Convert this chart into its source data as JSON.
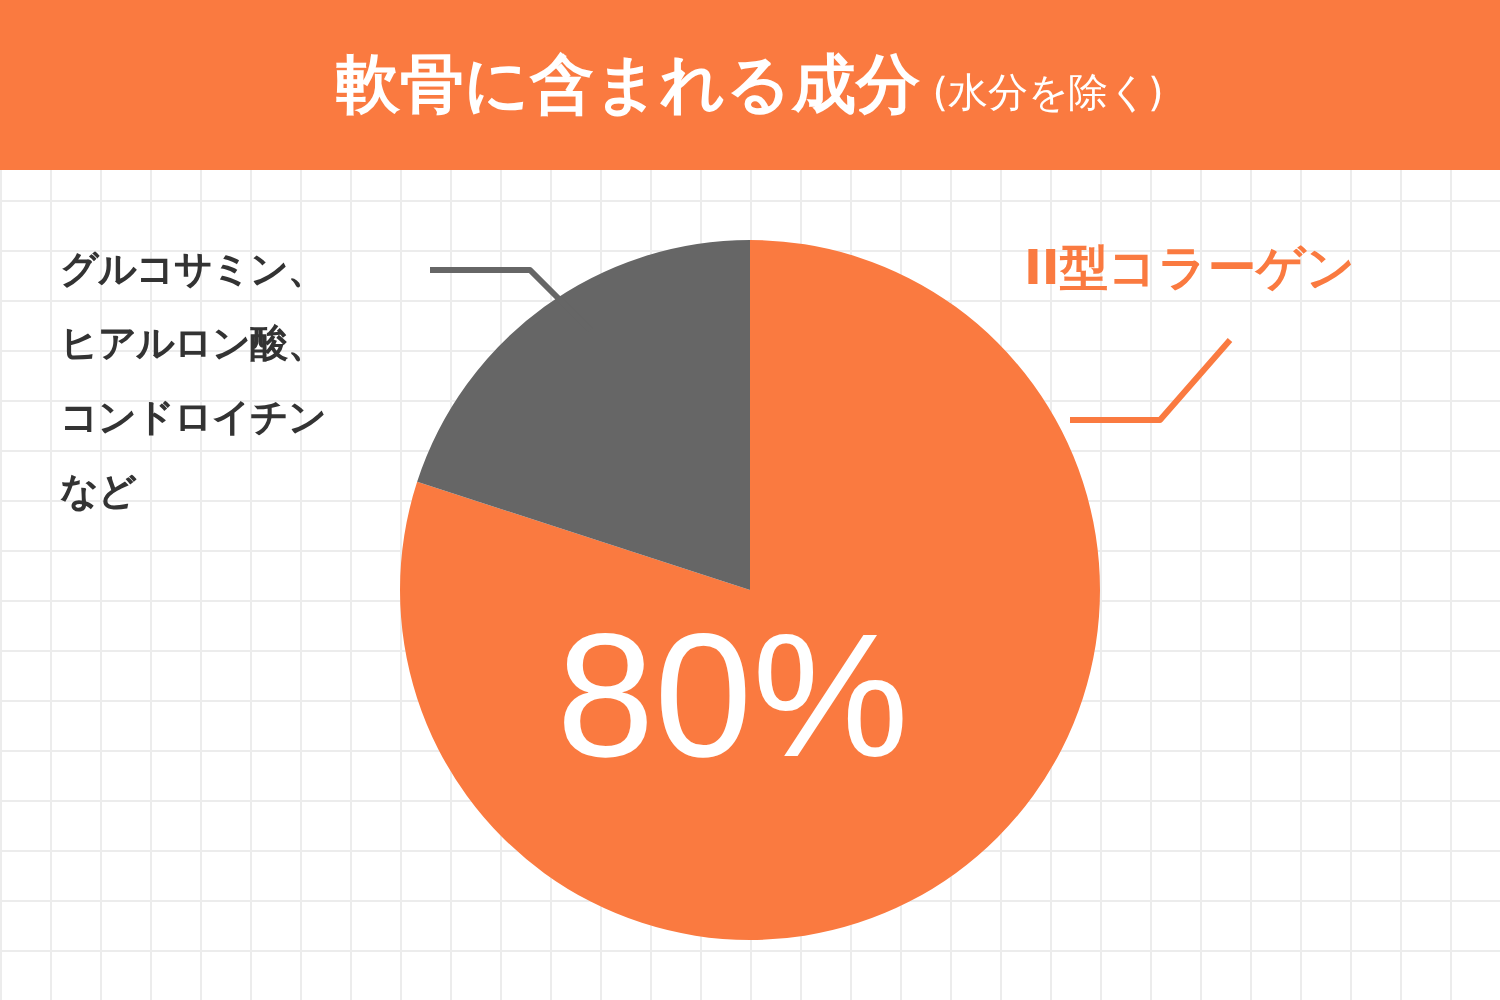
{
  "chart_data": {
    "type": "pie",
    "title": "軟骨に含まれる成分",
    "subtitle": "(水分を除く)",
    "categories": [
      "II型コラーゲン",
      "グルコサミン、ヒアルロン酸、コンドロイチンなど"
    ],
    "values": [
      80,
      20
    ],
    "colors": [
      "#fa7a40",
      "#666666"
    ],
    "value_labels": [
      "80%",
      null
    ]
  }
}
